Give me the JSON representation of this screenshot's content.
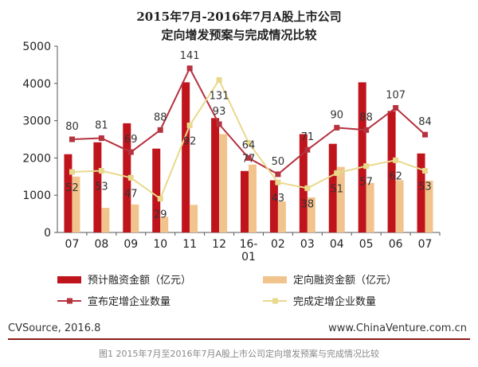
{
  "chart_data": {
    "type": "bar",
    "title": "2015年7月-2016年7月A股上市公司",
    "subtitle": "定向增发预案与完成情况比较",
    "categories": [
      "07",
      "08",
      "09",
      "10",
      "11",
      "12",
      "16-\n01",
      "02",
      "03",
      "04",
      "05",
      "06",
      "07"
    ],
    "ylim": [
      0,
      5000
    ],
    "yticks": [
      0,
      1000,
      2000,
      3000,
      4000,
      5000
    ],
    "series": [
      {
        "name": "预计融资金额（亿元）",
        "kind": "bar",
        "color": "#c0141c",
        "values": [
          2100,
          2420,
          2930,
          2250,
          4030,
          3070,
          1650,
          1400,
          2640,
          2380,
          4030,
          3260,
          2120
        ]
      },
      {
        "name": "定向融资金额（亿元）",
        "kind": "bar",
        "color": "#f2c48d",
        "values": [
          1500,
          660,
          750,
          420,
          740,
          2640,
          1820,
          830,
          940,
          1760,
          1330,
          1400,
          1390
        ]
      },
      {
        "name": "宣布定增企业数量",
        "kind": "line",
        "color": "#b5323f",
        "values": [
          80,
          81,
          69,
          88,
          141,
          93,
          64,
          50,
          71,
          90,
          88,
          107,
          84
        ]
      },
      {
        "name": "完成定增企业数量",
        "kind": "line",
        "color": "#e8d98c",
        "values": [
          52,
          53,
          47,
          29,
          92,
          131,
          77,
          43,
          38,
          51,
          57,
          62,
          53
        ]
      }
    ],
    "legend_position": "bottom",
    "grid": false
  },
  "footer": {
    "source": "CVSource, 2016.8",
    "site": "www.ChinaVenture.com.cn",
    "caption": "图1  2015年7月至2016年7月A股上市公司定向增发预案与完成情况比较"
  }
}
